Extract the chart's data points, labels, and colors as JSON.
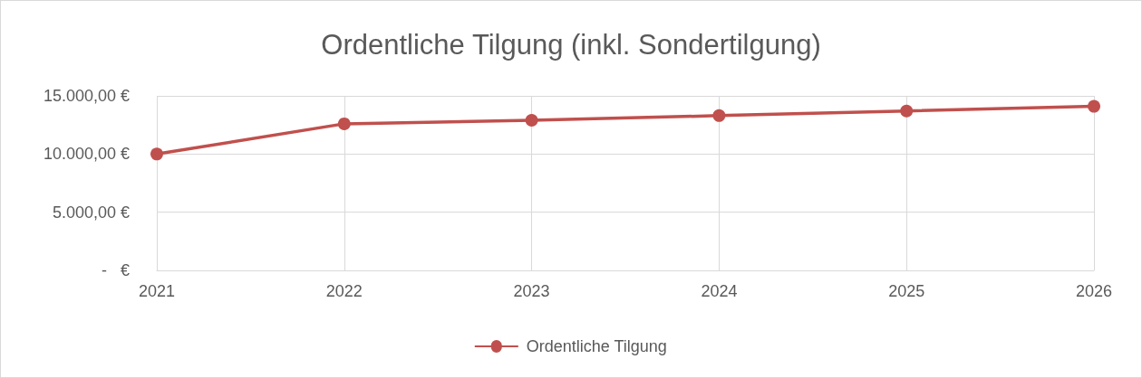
{
  "chart_data": {
    "type": "line",
    "title": "Ordentliche Tilgung (inkl. Sondertilgung)",
    "categories": [
      "2021",
      "2022",
      "2023",
      "2024",
      "2025",
      "2026"
    ],
    "series": [
      {
        "name": "Ordentliche Tilgung",
        "color": "#c0504d",
        "values": [
          10000,
          12600,
          12900,
          13300,
          13700,
          14100
        ]
      }
    ],
    "ylim": [
      0,
      15000
    ],
    "yticks": [
      {
        "value": 0,
        "label": "-   €"
      },
      {
        "value": 5000,
        "label": "5.000,00 €"
      },
      {
        "value": 10000,
        "label": "10.000,00 €"
      },
      {
        "value": 15000,
        "label": "15.000,00 €"
      }
    ],
    "grid": true,
    "legend": "bottom",
    "marker": "circle",
    "line_style": "solid"
  }
}
